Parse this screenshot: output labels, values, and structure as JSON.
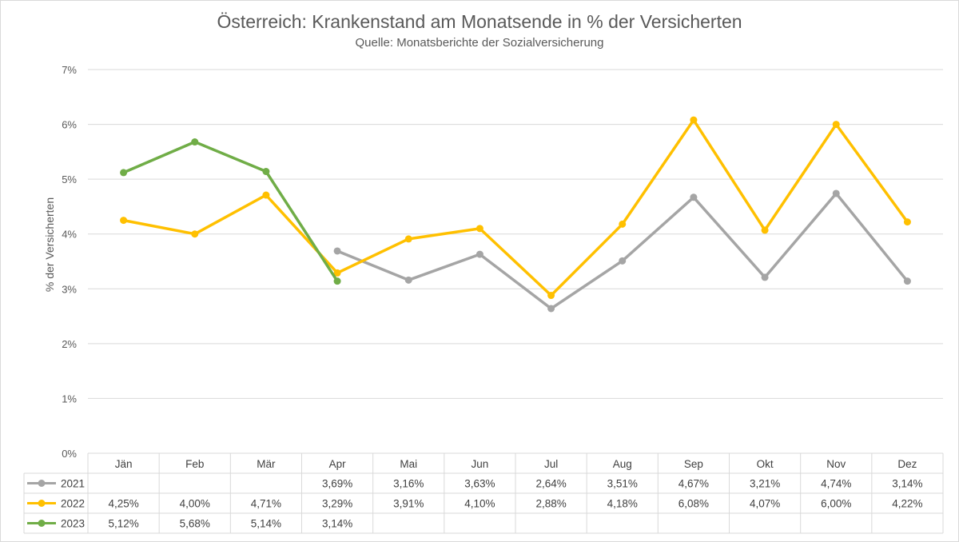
{
  "chart_data": {
    "type": "line",
    "title": "Österreich: Krankenstand am Monatsende in % der Versicherten",
    "subtitle": "Quelle: Monatsberichte der Sozialversicherung",
    "xlabel": "",
    "ylabel": "% der Versicherten",
    "ylim": [
      0,
      7
    ],
    "yticks": [
      "0%",
      "1%",
      "2%",
      "3%",
      "4%",
      "5%",
      "6%",
      "7%"
    ],
    "grid": true,
    "legend": "data-table",
    "categories": [
      "Jän",
      "Feb",
      "Mär",
      "Apr",
      "Mai",
      "Jun",
      "Jul",
      "Aug",
      "Sep",
      "Okt",
      "Nov",
      "Dez"
    ],
    "series": [
      {
        "name": "2021",
        "color": "#a5a5a5",
        "values": [
          null,
          null,
          null,
          3.69,
          3.16,
          3.63,
          2.64,
          3.51,
          4.67,
          3.21,
          4.74,
          3.14
        ],
        "labels": [
          "",
          "",
          "",
          "3,69%",
          "3,16%",
          "3,63%",
          "2,64%",
          "3,51%",
          "4,67%",
          "3,21%",
          "4,74%",
          "3,14%"
        ]
      },
      {
        "name": "2022",
        "color": "#ffc000",
        "values": [
          4.25,
          4.0,
          4.71,
          3.29,
          3.91,
          4.1,
          2.88,
          4.18,
          6.08,
          4.07,
          6.0,
          4.22
        ],
        "labels": [
          "4,25%",
          "4,00%",
          "4,71%",
          "3,29%",
          "3,91%",
          "4,10%",
          "2,88%",
          "4,18%",
          "6,08%",
          "4,07%",
          "6,00%",
          "4,22%"
        ]
      },
      {
        "name": "2023",
        "color": "#70ad47",
        "values": [
          5.12,
          5.68,
          5.14,
          3.14,
          null,
          null,
          null,
          null,
          null,
          null,
          null,
          null
        ],
        "labels": [
          "5,12%",
          "5,68%",
          "5,14%",
          "3,14%",
          "",
          "",
          "",
          "",
          "",
          "",
          "",
          ""
        ]
      }
    ]
  }
}
